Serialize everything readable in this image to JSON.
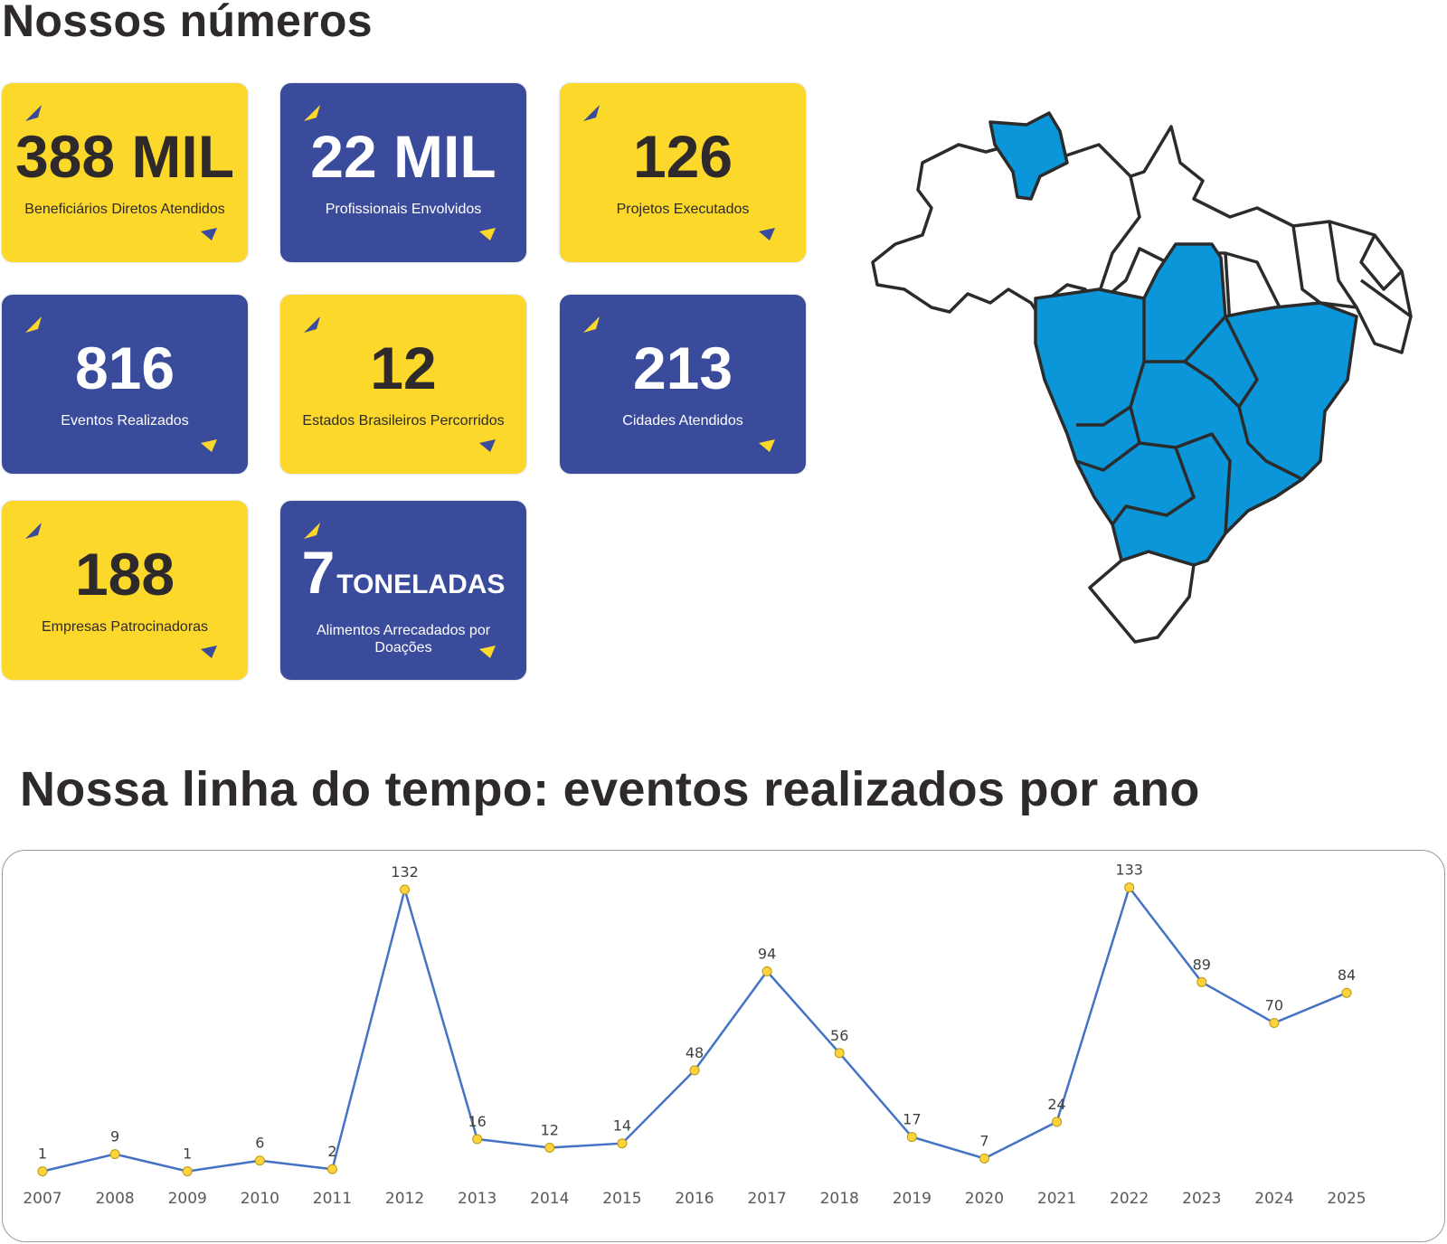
{
  "page": {
    "title": "Nossos números",
    "timeline_title": "Nossa linha do tempo: eventos realizados por ano"
  },
  "stats": [
    {
      "value": "388 MIL",
      "label": "Beneficiários Diretos Atendidos",
      "color": "yellow"
    },
    {
      "value": "22 MIL",
      "label": "Profissionais Envolvidos",
      "color": "blue"
    },
    {
      "value": "126",
      "label": "Projetos Executados",
      "color": "yellow"
    },
    {
      "value": "816",
      "label": "Eventos Realizados",
      "color": "blue"
    },
    {
      "value": "12",
      "label": "Estados Brasileiros Percorridos",
      "color": "yellow"
    },
    {
      "value": "213",
      "label": "Cidades Atendidos",
      "color": "blue"
    },
    {
      "value": "188",
      "label": "Empresas Patrocinadoras",
      "color": "yellow"
    },
    {
      "value": "7",
      "unit": "TONELADAS",
      "label": "Alimentos Arrecadados por Doações",
      "color": "blue"
    }
  ],
  "colors": {
    "yellow": "#fcd82b",
    "blue": "#3a4b9c",
    "map_highlight": "#0a96d8",
    "line": "#4472c4",
    "marker": "#ffd33d"
  },
  "map": {
    "description_icon": "brazil-map",
    "highlighted_regions": 12
  },
  "chart_data": {
    "type": "line",
    "title": "Nossa linha do tempo: eventos realizados por ano",
    "categories": [
      "2007",
      "2008",
      "2009",
      "2010",
      "2011",
      "2012",
      "2013",
      "2014",
      "2015",
      "2016",
      "2017",
      "2018",
      "2019",
      "2020",
      "2021",
      "2022",
      "2023",
      "2024",
      "2025"
    ],
    "series": [
      {
        "values": [
          1,
          9,
          1,
          6,
          2,
          132,
          16,
          12,
          14,
          48,
          94,
          56,
          17,
          7,
          24,
          133,
          89,
          70,
          84
        ]
      }
    ],
    "ylim": [
      0,
      140
    ],
    "grid": false,
    "legend": "none",
    "data_labels": true
  }
}
